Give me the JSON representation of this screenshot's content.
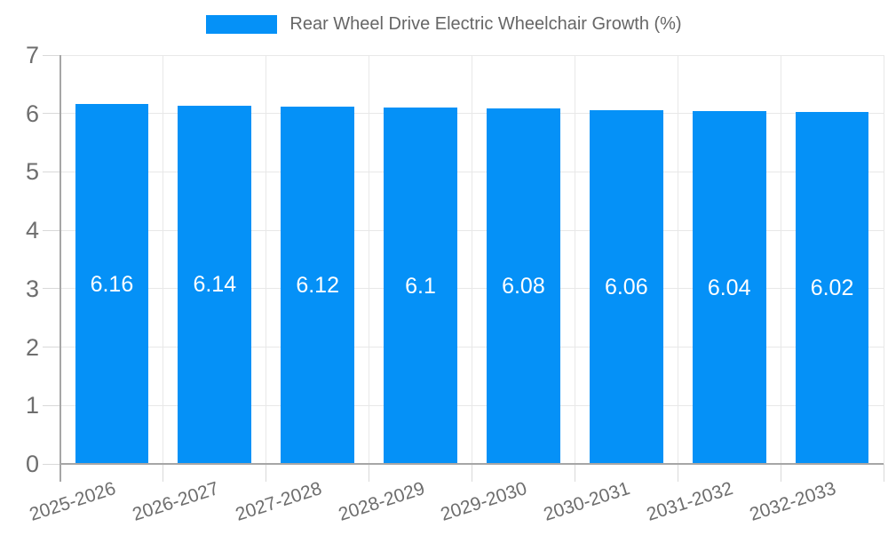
{
  "legend": {
    "label": "Rear Wheel Drive Electric Wheelchair Growth (%)"
  },
  "chart_data": {
    "type": "bar",
    "title": "Rear Wheel Drive Electric Wheelchair Growth (%)",
    "categories": [
      "2025-2026",
      "2026-2027",
      "2027-2028",
      "2028-2029",
      "2029-2030",
      "2030-2031",
      "2031-2032",
      "2032-2033"
    ],
    "values": [
      6.16,
      6.14,
      6.12,
      6.1,
      6.08,
      6.06,
      6.04,
      6.02
    ],
    "value_labels": [
      "6.16",
      "6.14",
      "6.12",
      "6.1",
      "6.08",
      "6.06",
      "6.04",
      "6.02"
    ],
    "xlabel": "",
    "ylabel": "",
    "ylim": [
      0,
      7
    ],
    "yticks": [
      0,
      1,
      2,
      3,
      4,
      5,
      6,
      7
    ],
    "grid": true,
    "legend_position": "top",
    "bar_color": "#0591f7",
    "value_label_color": "#ffffff",
    "axis_text_color": "#6e6e6e",
    "grid_color": "#e8e8e8",
    "axis_line_color": "#a6a6a6"
  }
}
